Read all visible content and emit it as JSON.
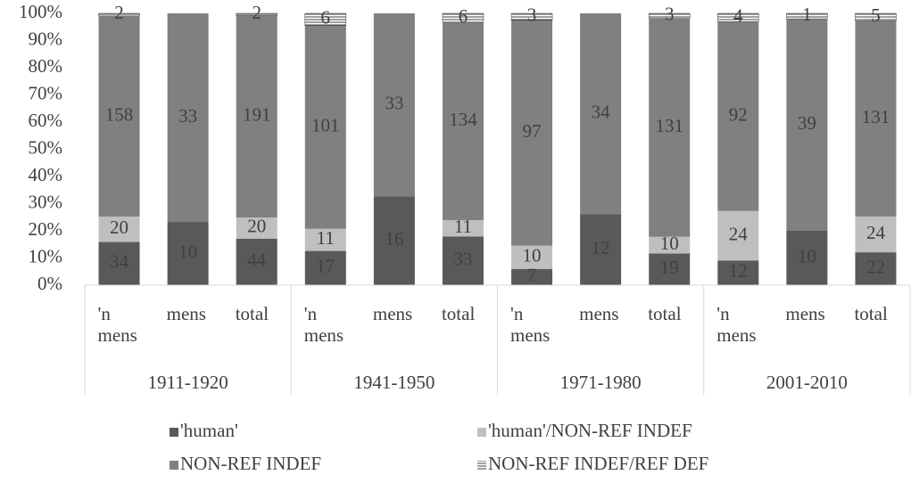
{
  "chart_data": {
    "type": "bar",
    "stacked": "percent",
    "groups": [
      "1911-1920",
      "1941-1950",
      "1971-1980",
      "2001-2010"
    ],
    "categories": [
      "'n mens",
      "mens",
      "total",
      "'n mens",
      "mens",
      "total",
      "'n mens",
      "mens",
      "total",
      "'n mens",
      "mens",
      "total"
    ],
    "series": [
      {
        "name": "'human'",
        "color": "#595959",
        "values": [
          34,
          10,
          44,
          17,
          16,
          33,
          7,
          12,
          19,
          12,
          10,
          22
        ]
      },
      {
        "name": "'human'/NON-REF INDEF",
        "color": "#bfbfbf",
        "values": [
          20,
          null,
          20,
          11,
          null,
          11,
          10,
          null,
          10,
          24,
          null,
          24
        ]
      },
      {
        "name": "NON-REF INDEF",
        "color": "#808080",
        "values": [
          158,
          33,
          191,
          101,
          33,
          134,
          97,
          34,
          131,
          92,
          39,
          131
        ]
      },
      {
        "name": "NON-REF INDEF/REF DEF",
        "color": "#404040",
        "pattern": "horizontal-lines",
        "values": [
          2,
          null,
          2,
          6,
          null,
          6,
          3,
          null,
          3,
          4,
          1,
          5
        ]
      }
    ],
    "ylim": [
      0,
      100
    ],
    "yticks": [
      {
        "value": 0,
        "label": "0%"
      },
      {
        "value": 10,
        "label": "10%"
      },
      {
        "value": 20,
        "label": "20%"
      },
      {
        "value": 30,
        "label": "30%"
      },
      {
        "value": 40,
        "label": "40%"
      },
      {
        "value": 50,
        "label": "50%"
      },
      {
        "value": 60,
        "label": "60%"
      },
      {
        "value": 70,
        "label": "70%"
      },
      {
        "value": 80,
        "label": "80%"
      },
      {
        "value": 90,
        "label": "90%"
      },
      {
        "value": 100,
        "label": "100%"
      }
    ],
    "grid": false,
    "legend": "bottom"
  }
}
